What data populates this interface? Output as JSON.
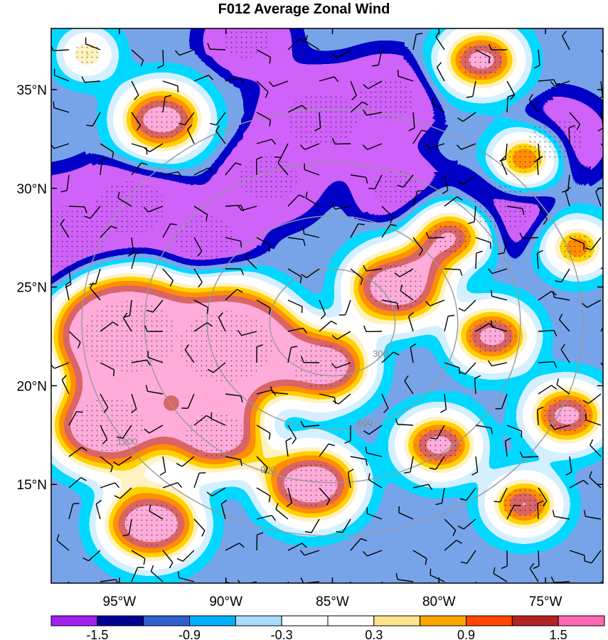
{
  "chart_data": {
    "type": "heatmap",
    "title": "F012 Average Zonal Wind",
    "map_extent": {
      "lon": [
        -98.2,
        -72.3
      ],
      "lat": [
        10.0,
        38.1
      ]
    },
    "x_ticks": [
      {
        "lon": -95,
        "label": "95°W"
      },
      {
        "lon": -90,
        "label": "90°W"
      },
      {
        "lon": -85,
        "label": "85°W"
      },
      {
        "lon": -80,
        "label": "80°W"
      },
      {
        "lon": -75,
        "label": "75°W"
      }
    ],
    "y_ticks": [
      {
        "lat": 35,
        "label": "35°N"
      },
      {
        "lat": 30,
        "label": "30°N"
      },
      {
        "lat": 25,
        "label": "25°N"
      },
      {
        "lat": 20,
        "label": "20°N"
      },
      {
        "lat": 15,
        "label": "15°N"
      }
    ],
    "colorbar": {
      "colors": [
        "#a020f0",
        "#000090",
        "#3060d0",
        "#00b0ff",
        "#a8dcff",
        "#ffffff",
        "#ffffff",
        "#ffe38a",
        "#ffa500",
        "#ff4500",
        "#b22222",
        "#ff69b4"
      ],
      "labels": [
        {
          "after_bin": 1,
          "text": "-1.5"
        },
        {
          "after_bin": 3,
          "text": "-0.9"
        },
        {
          "after_bin": 5,
          "text": "-0.3"
        },
        {
          "after_bin": 7,
          "text": "0.3"
        },
        {
          "after_bin": 9,
          "text": "0.9"
        },
        {
          "after_bin": 11,
          "text": "1.5"
        }
      ]
    },
    "range_rings": {
      "center": {
        "lon": -85.0,
        "lat": 23.2
      },
      "rings": [
        {
          "radius_km": 300,
          "label": "300"
        },
        {
          "radius_km": 600,
          "label": "600"
        },
        {
          "radius_km": 900,
          "label": "900"
        },
        {
          "radius_km": 1200,
          "label": "1200"
        }
      ]
    },
    "regions": [
      {
        "level": -1,
        "lon": -97.5,
        "lat": 27.5,
        "r": 3.5
      },
      {
        "level": -1,
        "lon": -94.5,
        "lat": 29.0,
        "r": 3.0
      },
      {
        "level": -1,
        "lon": -91.0,
        "lat": 27.5,
        "r": 2.5
      },
      {
        "level": -1,
        "lon": -88.0,
        "lat": 30.5,
        "r": 2.5
      },
      {
        "level": -1,
        "lon": -85.5,
        "lat": 33.5,
        "r": 3.0
      },
      {
        "level": -1,
        "lon": -82.5,
        "lat": 34.5,
        "r": 2.5
      },
      {
        "level": -1,
        "lon": -82.0,
        "lat": 30.0,
        "r": 2.0
      },
      {
        "level": -1,
        "lon": -77.0,
        "lat": 29.0,
        "r": 2.5
      },
      {
        "level": -1,
        "lon": -74.5,
        "lat": 32.5,
        "r": 2.3
      },
      {
        "level": -1,
        "lon": -89.0,
        "lat": 37.5,
        "r": 2.0
      },
      {
        "level": 1,
        "lon": -94.5,
        "lat": 22.5,
        "r": 4.0
      },
      {
        "level": 1,
        "lon": -90.0,
        "lat": 22.0,
        "r": 4.0
      },
      {
        "level": 1,
        "lon": -95.5,
        "lat": 18.0,
        "r": 3.0
      },
      {
        "level": 1,
        "lon": -90.5,
        "lat": 17.5,
        "r": 2.5
      },
      {
        "level": 1,
        "lon": -85.5,
        "lat": 21.0,
        "r": 2.5
      },
      {
        "level": 1,
        "lon": -82.0,
        "lat": 25.0,
        "r": 2.5
      },
      {
        "level": 1,
        "lon": -79.5,
        "lat": 27.5,
        "r": 1.8
      },
      {
        "level": 1,
        "lon": -86.0,
        "lat": 15.0,
        "r": 2.5
      },
      {
        "level": 1,
        "lon": -93.5,
        "lat": 13.0,
        "r": 2.5
      },
      {
        "level": 1,
        "lon": -80.0,
        "lat": 17.0,
        "r": 2.0
      },
      {
        "level": 1,
        "lon": -74.0,
        "lat": 18.5,
        "r": 2.0
      },
      {
        "level": 1,
        "lon": -76.0,
        "lat": 14.0,
        "r": 1.8
      },
      {
        "level": 1,
        "lon": -77.5,
        "lat": 22.5,
        "r": 2.0
      },
      {
        "level": 1,
        "lon": -93.0,
        "lat": 33.5,
        "r": 2.2
      },
      {
        "level": 1,
        "lon": -78.0,
        "lat": 36.5,
        "r": 2.0
      },
      {
        "level": 1,
        "lon": -76.0,
        "lat": 31.5,
        "r": 1.5
      },
      {
        "level": 1,
        "lon": -73.5,
        "lat": 27.0,
        "r": 1.5
      },
      {
        "level": 1,
        "lon": -96.5,
        "lat": 36.8,
        "r": 1.2
      }
    ]
  }
}
